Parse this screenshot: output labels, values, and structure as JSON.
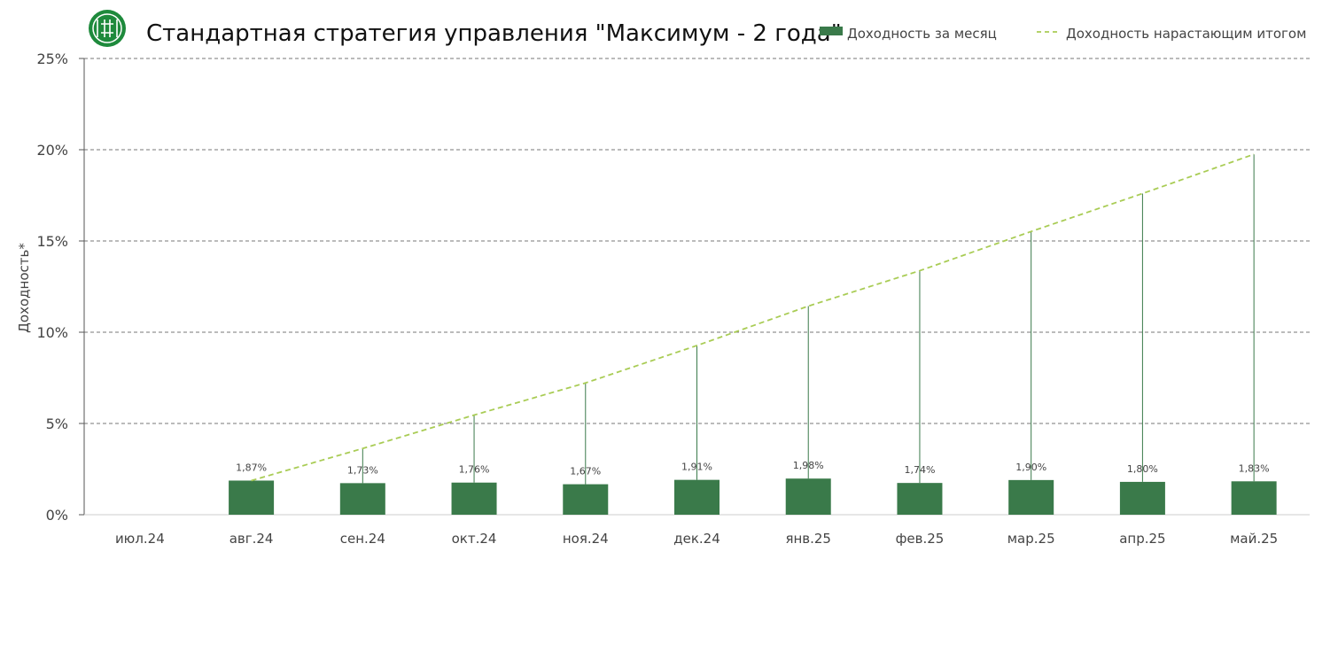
{
  "colors": {
    "bar": "#3a7a4a",
    "line": "#a9cc55",
    "stem": "#3a7a4a",
    "grid": "#777777",
    "logo": "#1e8a3c"
  },
  "logo": {
    "icon": "company-logo-icon"
  },
  "chart_data": {
    "type": "bar",
    "title": "Стандартная стратегия управления \"Максимум - 2 года\"",
    "ylabel": "Доходность*",
    "xlabel": "",
    "ylim": [
      0,
      25
    ],
    "yticks": [
      0,
      5,
      10,
      15,
      20,
      25
    ],
    "ytick_labels": [
      "0%",
      "5%",
      "10%",
      "15%",
      "20%",
      "25%"
    ],
    "grid": true,
    "legend_position": "top-right",
    "categories": [
      "июл.24",
      "авг.24",
      "сен.24",
      "окт.24",
      "ноя.24",
      "дек.24",
      "янв.25",
      "фев.25",
      "мар.25",
      "апр.25",
      "май.25"
    ],
    "series": [
      {
        "name": "Доходность за месяц",
        "kind": "bar",
        "values": [
          null,
          1.87,
          1.73,
          1.76,
          1.67,
          1.91,
          1.98,
          1.74,
          1.9,
          1.8,
          1.83
        ],
        "labels": [
          "",
          "1,87%",
          "1,73%",
          "1,76%",
          "1,67%",
          "1,91%",
          "1,98%",
          "1,74%",
          "1,90%",
          "1,80%",
          "1,83%"
        ]
      },
      {
        "name": "Доходность нарастающим итогом",
        "kind": "line",
        "style": "dashed",
        "values": [
          null,
          1.87,
          3.63,
          5.46,
          7.22,
          9.27,
          11.43,
          13.37,
          15.52,
          17.6,
          19.75
        ]
      }
    ]
  }
}
